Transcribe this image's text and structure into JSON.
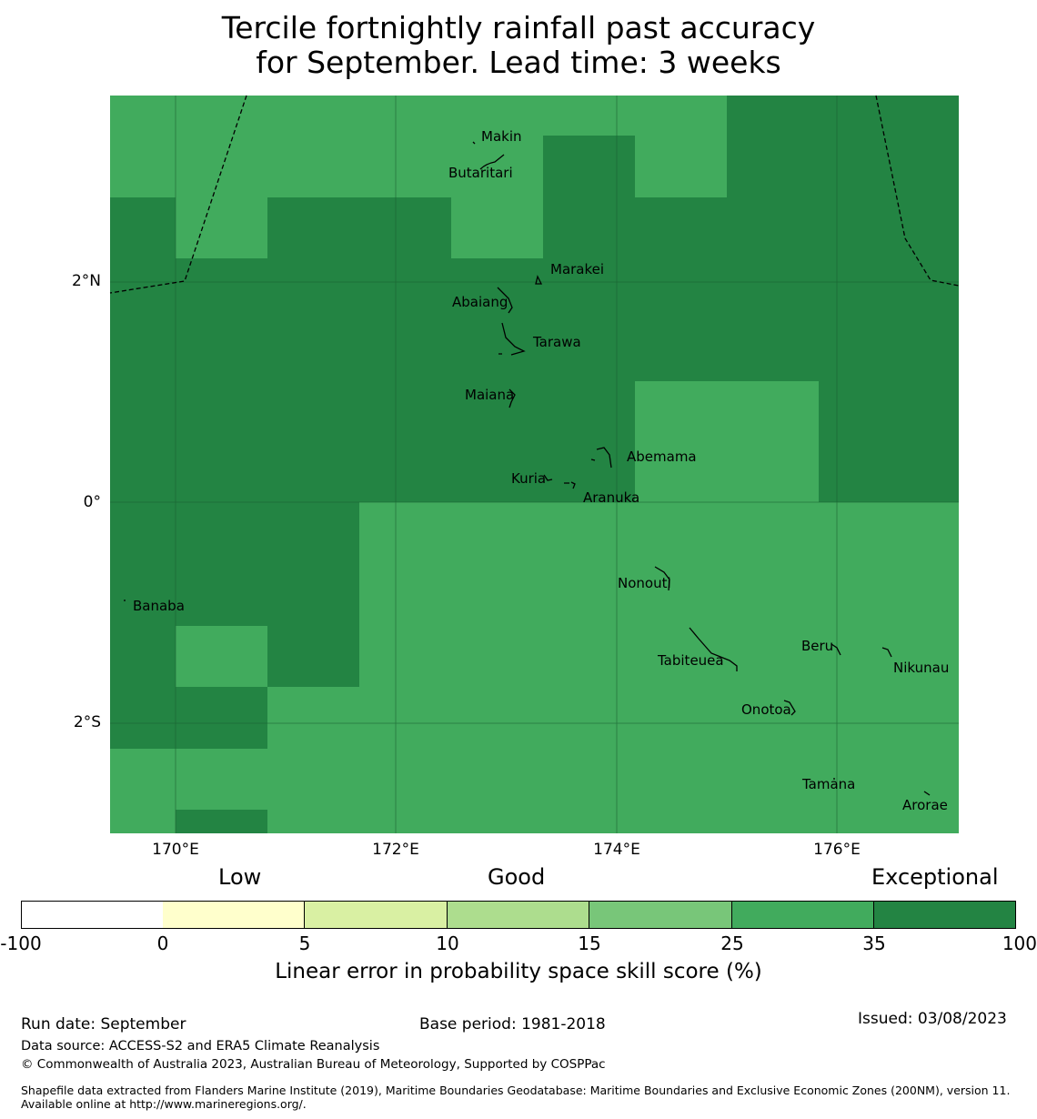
{
  "title": {
    "line1": "Tercile fortnightly rainfall past accuracy",
    "line2": "for September. Lead time: 3 weeks"
  },
  "map": {
    "lat_labels": [
      "2°N",
      "0°",
      "2°S"
    ],
    "lon_labels": [
      "170°E",
      "172°E",
      "174°E",
      "176°E"
    ],
    "islands": [
      "Makin",
      "Butaritari",
      "Marakei",
      "Abaiang",
      "Tarawa",
      "Maiana",
      "Abemama",
      "Kuria",
      "Aranuka",
      "Nonouti",
      "Banaba",
      "Beru",
      "Tabiteuea",
      "Nikunau",
      "Onotoa",
      "Tamana",
      "Arorae"
    ],
    "colors": {
      "good": "#41ab5d",
      "exceptional": "#238443"
    }
  },
  "colorbar": {
    "categories": [
      "Low",
      "Good",
      "Exceptional"
    ],
    "ticks": [
      "-100",
      "0",
      "5",
      "10",
      "15",
      "25",
      "35",
      "100"
    ],
    "colors": [
      "#ffffff",
      "#ffffcc",
      "#d9f0a3",
      "#addd8e",
      "#78c679",
      "#41ab5d",
      "#238443"
    ],
    "label": "Linear error in probability space skill score (%)"
  },
  "footer": {
    "run_date": "Run date: September",
    "base_period": "Base period: 1981-2018",
    "issued": "Issued: 03/08/2023",
    "data_source": "Data source: ACCESS-S2 and ERA5 Climate Reanalysis",
    "copyright": "© Commonwealth of Australia 2023, Australian Bureau of Meteorology, Supported by COSPPac",
    "shapefile": "Shapefile data extracted from Flanders Marine Institute (2019), Maritime Boundaries Geodatabase: Maritime Boundaries and Exclusive Economic Zones (200NM), version 11. Available online at http://www.marineregions.org/."
  }
}
